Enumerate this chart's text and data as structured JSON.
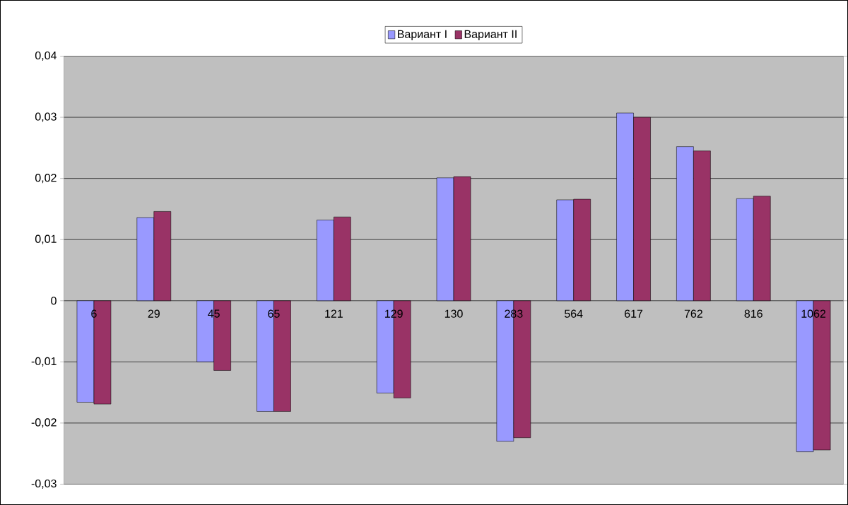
{
  "chart_data": {
    "type": "bar",
    "categories": [
      "6",
      "29",
      "45",
      "65",
      "121",
      "129",
      "130",
      "283",
      "564",
      "617",
      "762",
      "816",
      "1062"
    ],
    "series": [
      {
        "name": "Вариант I",
        "color": "#9999ff",
        "values": [
          -0.0166,
          0.0136,
          -0.01,
          -0.0181,
          0.0132,
          -0.0151,
          0.0201,
          -0.023,
          0.0165,
          0.0307,
          0.0252,
          0.0167,
          -0.0247
        ]
      },
      {
        "name": "Вариант II",
        "color": "#993366",
        "values": [
          -0.0169,
          0.0146,
          -0.0114,
          -0.0181,
          0.0137,
          -0.0159,
          0.0203,
          -0.0224,
          0.0166,
          0.03,
          0.0245,
          0.0171,
          -0.0244
        ]
      }
    ],
    "ylim": [
      -0.03,
      0.04
    ],
    "yticks": [
      {
        "value": -0.03,
        "label": "-0,03"
      },
      {
        "value": -0.02,
        "label": "-0,02"
      },
      {
        "value": -0.01,
        "label": "-0,01"
      },
      {
        "value": 0,
        "label": "0"
      },
      {
        "value": 0.01,
        "label": "0,01"
      },
      {
        "value": 0.02,
        "label": "0,02"
      },
      {
        "value": 0.03,
        "label": "0,03"
      },
      {
        "value": 0.04,
        "label": "0,04"
      }
    ],
    "grid": "y",
    "legend": "top"
  }
}
